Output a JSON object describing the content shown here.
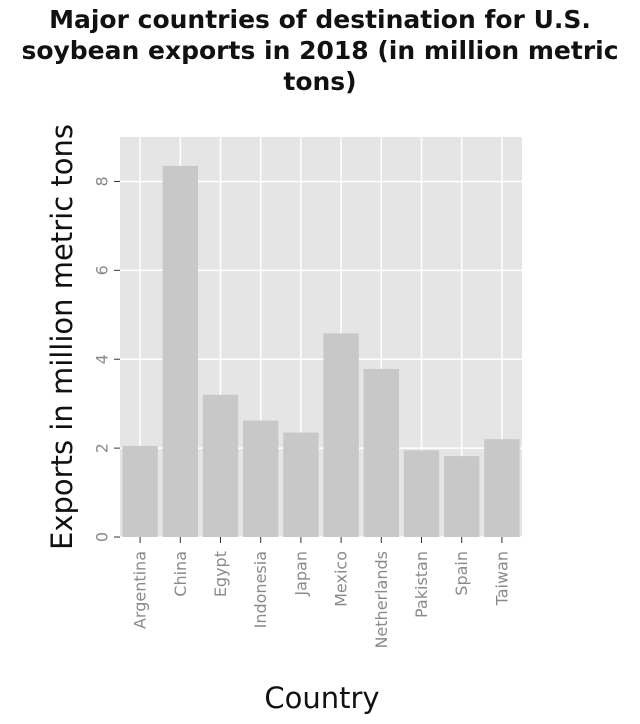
{
  "chart_data": {
    "type": "bar",
    "title_lines": [
      "Major countries of destination for U.S.",
      "soybean exports in 2018 (in million metric",
      "tons)"
    ],
    "xlabel": "Country",
    "ylabel": "Exports in million metric tons",
    "categories": [
      "Argentina",
      "China",
      "Egypt",
      "Indonesia",
      "Japan",
      "Mexico",
      "Netherlands",
      "Pakistan",
      "Spain",
      "Taiwan"
    ],
    "values": [
      2.05,
      8.35,
      3.2,
      2.62,
      2.35,
      4.58,
      3.78,
      1.95,
      1.82,
      2.2
    ],
    "yticks": [
      "0",
      "2",
      "4",
      "6",
      "8"
    ],
    "ylim": [
      0,
      9
    ],
    "grid": true,
    "colors": {
      "panel": "#e5e5e5",
      "bar": "#c8c8c8",
      "grid": "#ffffff"
    }
  }
}
